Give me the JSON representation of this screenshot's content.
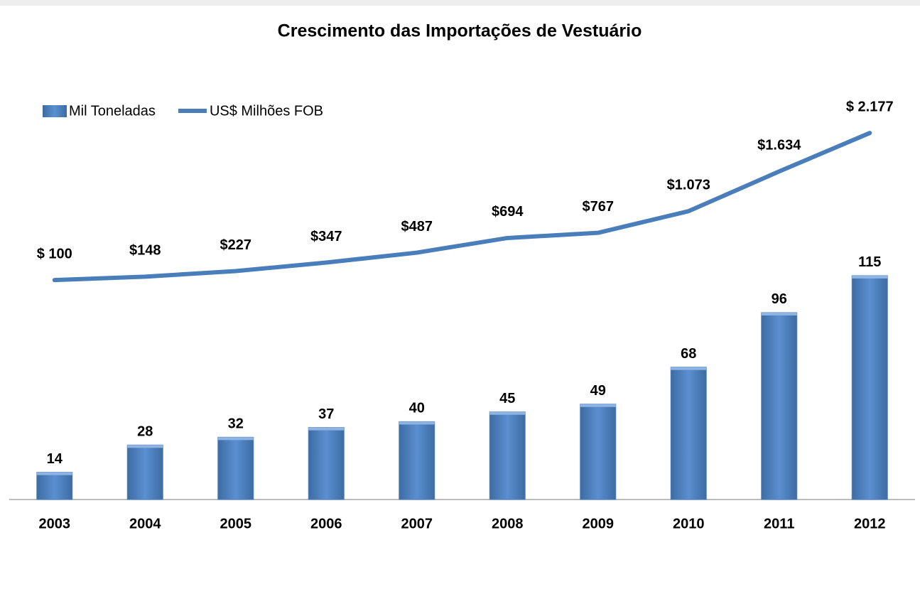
{
  "chart_data": {
    "type": "bar",
    "title": "Crescimento das Importações de Vestuário",
    "categories": [
      "2003",
      "2004",
      "2005",
      "2006",
      "2007",
      "2008",
      "2009",
      "2010",
      "2011",
      "2012"
    ],
    "series": [
      {
        "name": "Mil Toneladas",
        "type": "bar",
        "color": "#4f81bd",
        "values": [
          14,
          28,
          32,
          37,
          40,
          45,
          49,
          68,
          96,
          115
        ]
      },
      {
        "name": "US$ Milhões FOB",
        "type": "line",
        "axis": "y2",
        "color": "#4a7ebb",
        "values": [
          100,
          148,
          227,
          347,
          487,
          694,
          767,
          1073,
          1634,
          2177
        ],
        "value_labels": [
          "$ 100",
          "$148",
          "$227",
          "$347",
          "$487",
          "$694",
          "$767",
          "$1.073",
          "$1.634",
          "$ 2.177"
        ]
      }
    ],
    "ylim": [
      0,
      200
    ],
    "y2lim": [
      -3000,
      2500
    ],
    "legend": "top-left"
  }
}
